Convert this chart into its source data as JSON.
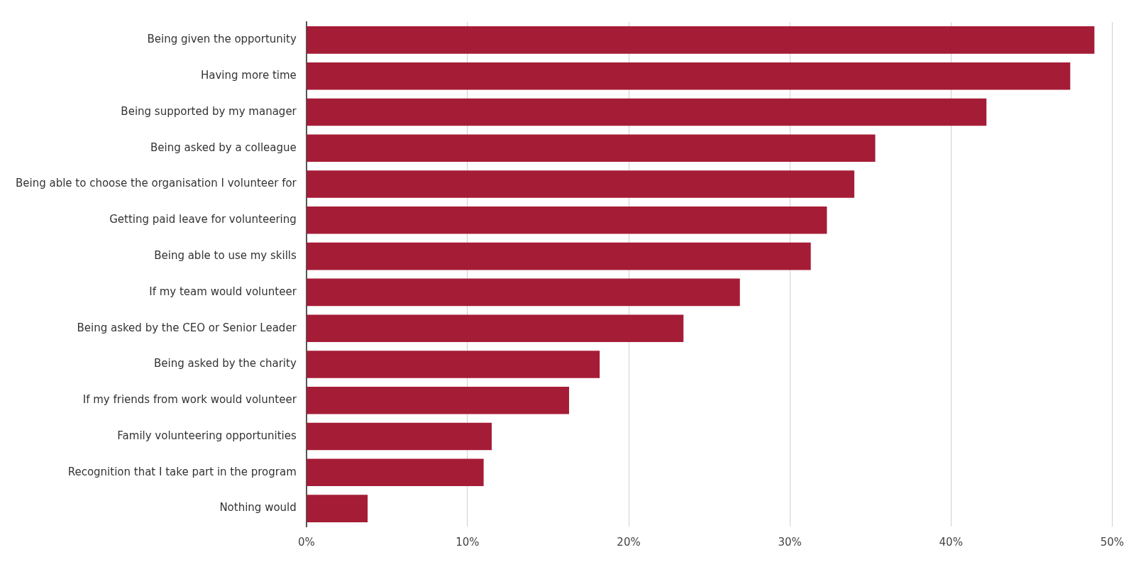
{
  "chart_data": {
    "type": "bar",
    "orientation": "horizontal",
    "categories": [
      "Being given the opportunity",
      "Having more time",
      "Being supported by my manager",
      "Being asked by a colleague",
      "Being able to choose the organisation I volunteer for",
      "Getting paid leave for volunteering",
      "Being able to use my skills",
      "If my team would volunteer",
      "Being asked by the CEO or Senior Leader",
      "Being asked by the charity",
      "If my friends from work would volunteer",
      "Family volunteering opportunities",
      "Recognition that I take part in the program",
      "Nothing would"
    ],
    "values": [
      48.9,
      47.4,
      42.2,
      35.3,
      34.0,
      32.3,
      31.3,
      26.9,
      23.4,
      18.2,
      16.3,
      11.5,
      11.0,
      3.8
    ],
    "color": "#a51c36",
    "xlim": [
      0,
      50
    ],
    "xticks": [
      {
        "value": 0,
        "label": "0%"
      },
      {
        "value": 10,
        "label": "10%"
      },
      {
        "value": 20,
        "label": "20%"
      },
      {
        "value": 30,
        "label": "30%"
      },
      {
        "value": 40,
        "label": "40%"
      },
      {
        "value": 50,
        "label": "50%"
      }
    ],
    "grid": "x",
    "legend": false
  }
}
